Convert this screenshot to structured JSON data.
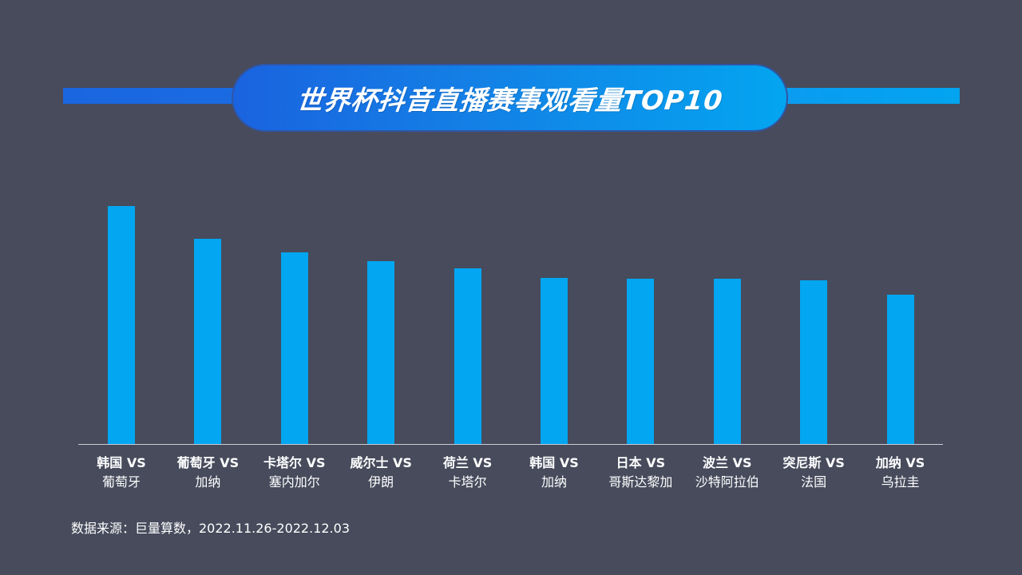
{
  "header": {
    "title": "世界杯抖音直播赛事观看量TOP10"
  },
  "colors": {
    "background": "#474b5c",
    "bar": "#03a6f0",
    "title_gradient_start": "#1a63df",
    "title_gradient_end": "#03a5f0",
    "axis": "#c8cad2"
  },
  "x_labels": [
    {
      "line1": "韩国 VS",
      "line2": "葡萄牙"
    },
    {
      "line1": "葡萄牙 VS",
      "line2": "加纳"
    },
    {
      "line1": "卡塔尔 VS",
      "line2": "塞内加尔"
    },
    {
      "line1": "威尔士 VS",
      "line2": "伊朗"
    },
    {
      "line1": "荷兰 VS",
      "line2": "卡塔尔"
    },
    {
      "line1": "韩国 VS",
      "line2": "加纳"
    },
    {
      "line1": "日本 VS",
      "line2": "哥斯达黎加"
    },
    {
      "line1": "波兰 VS",
      "line2": "沙特阿拉伯"
    },
    {
      "line1": "突尼斯 VS",
      "line2": "法国"
    },
    {
      "line1": "加纳 VS",
      "line2": "乌拉圭"
    }
  ],
  "footer": {
    "source": "数据来源：巨量算数，2022.11.26-2022.12.03"
  },
  "chart_data": {
    "type": "bar",
    "title": "世界杯抖音直播赛事观看量TOP10",
    "categories": [
      "韩国 VS 葡萄牙",
      "葡萄牙 VS 加纳",
      "卡塔尔 VS 塞内加尔",
      "威尔士 VS 伊朗",
      "荷兰 VS 卡塔尔",
      "韩国 VS 加纳",
      "日本 VS 哥斯达黎加",
      "波兰 VS 沙特阿拉伯",
      "突尼斯 VS 法国",
      "加纳 VS 乌拉圭"
    ],
    "values": [
      100,
      86.3,
      80.7,
      77.0,
      74.0,
      70.0,
      69.7,
      69.7,
      69.0,
      63.0
    ],
    "value_note": "No y-axis or data labels shown; values are relative bar heights (tallest = 100)",
    "xlabel": "",
    "ylabel": "",
    "ylim": [
      0,
      100
    ],
    "grid": false,
    "legend": null,
    "source": "数据来源：巨量算数，2022.11.26-2022.12.03"
  }
}
